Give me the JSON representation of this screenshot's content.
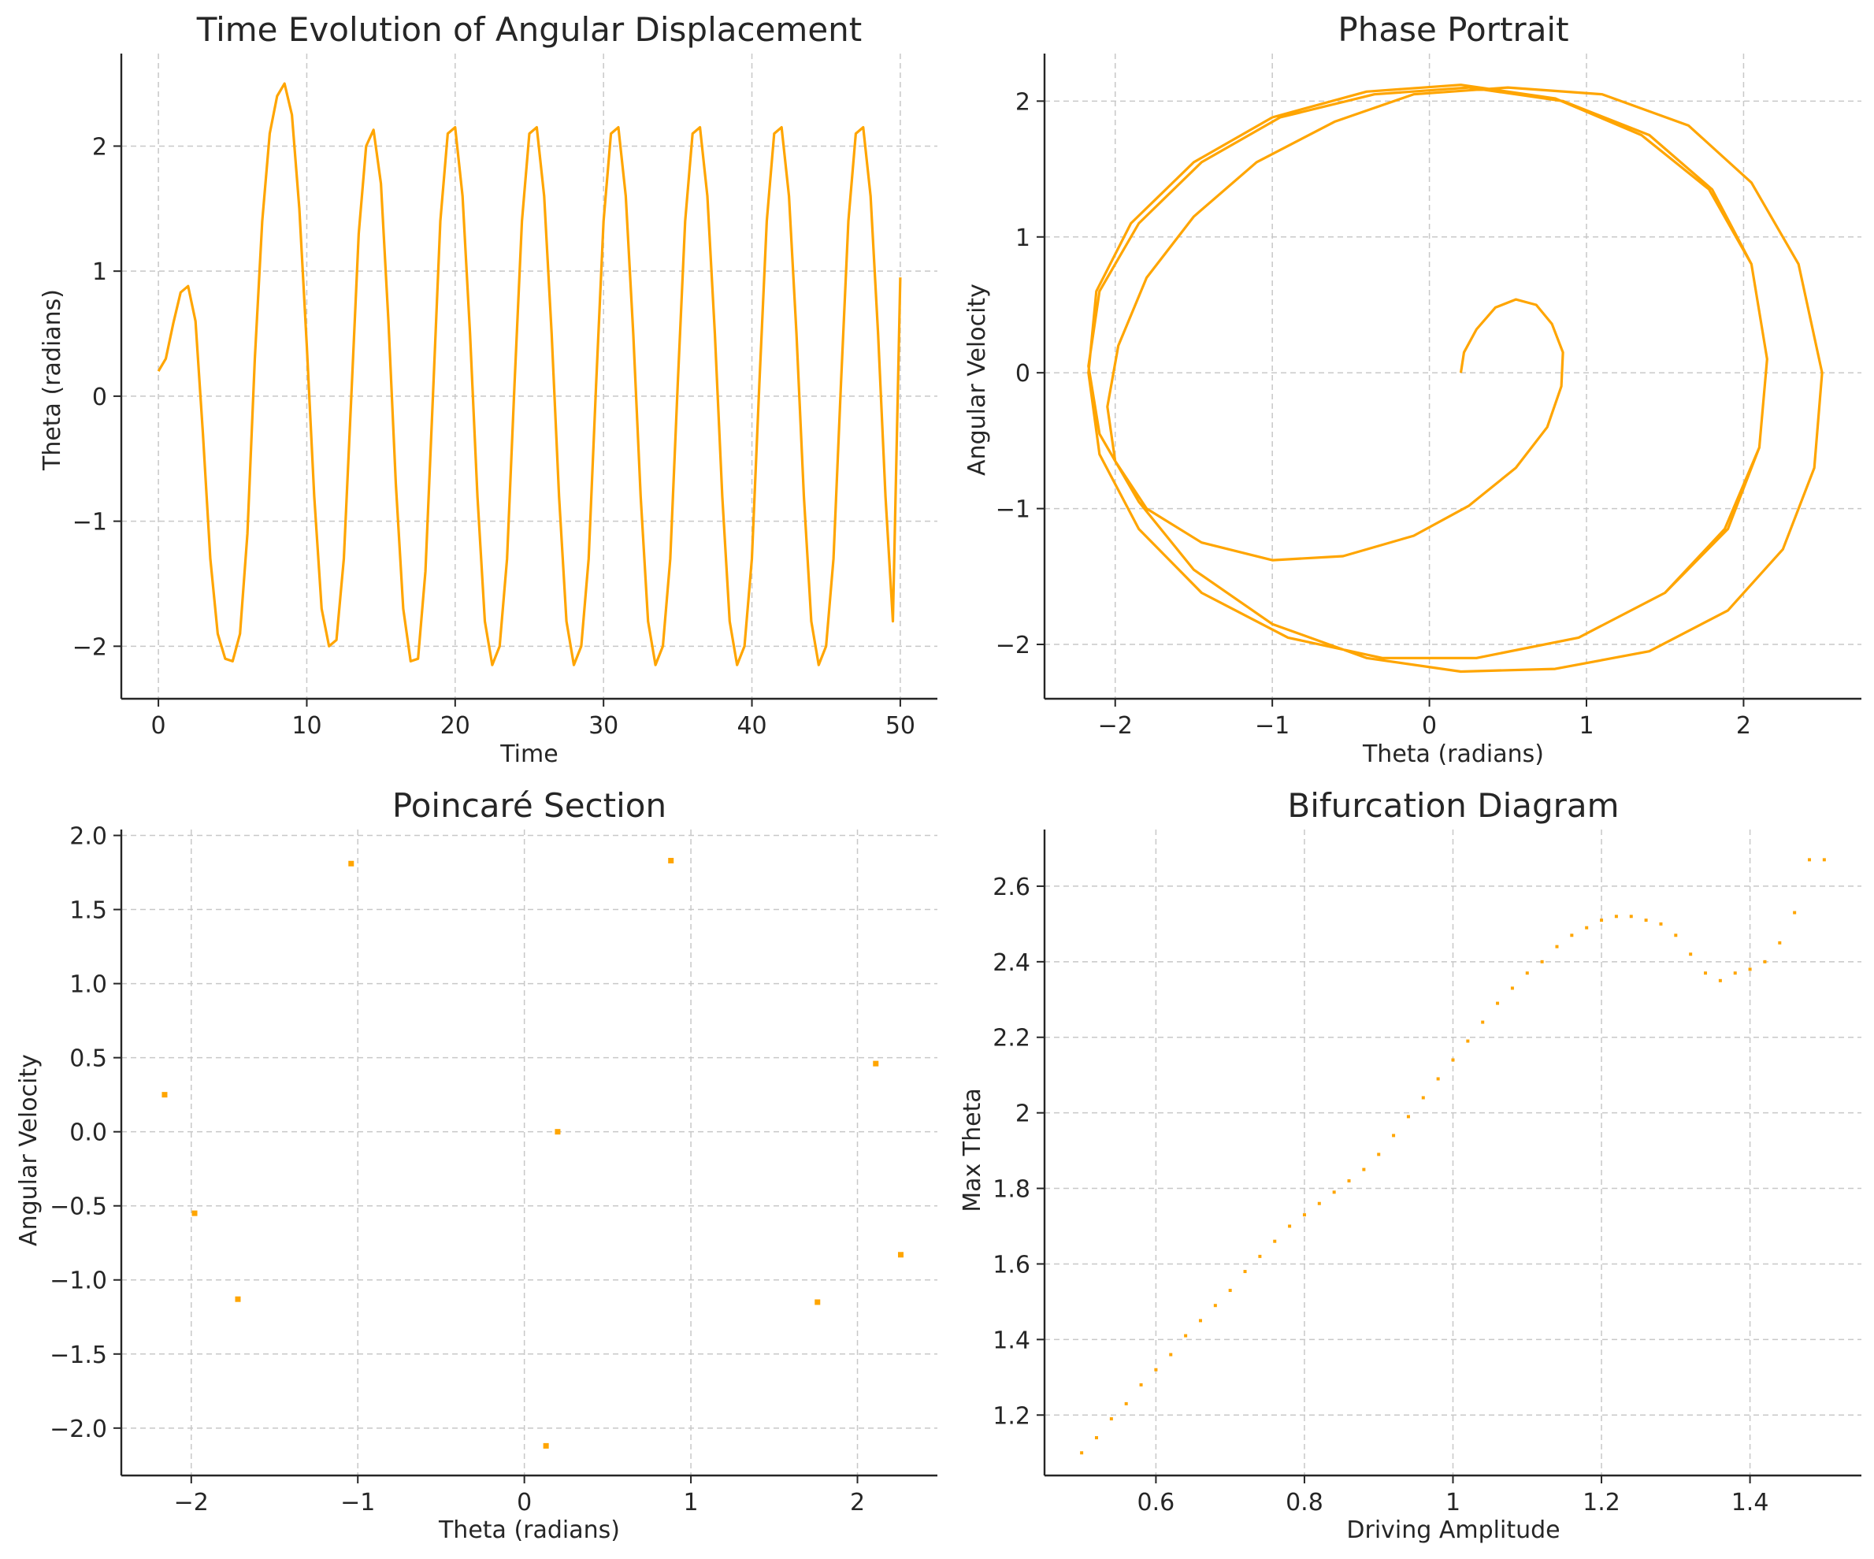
{
  "accent_color": "#ffa500",
  "chart_data": [
    {
      "type": "line",
      "title": "Time Evolution of Angular Displacement",
      "xlabel": "Time",
      "ylabel": "Theta (radians)",
      "xlim": [
        -2.5,
        52.5
      ],
      "ylim": [
        -2.42,
        2.74
      ],
      "xticks": [
        0,
        10,
        20,
        30,
        40,
        50
      ],
      "yticks": [
        -2,
        -1,
        0,
        1,
        2
      ],
      "grid": true,
      "color": "#ffa500",
      "series": [
        {
          "x": [
            0,
            0.5,
            1.0,
            1.5,
            2.0,
            2.5,
            3.0,
            3.5,
            4.0,
            4.5,
            5.0,
            5.5,
            6.0,
            6.5,
            7.0,
            7.5,
            8.0,
            8.5,
            9.0,
            9.5,
            10.0,
            10.5,
            11.0,
            11.5,
            12.0,
            12.5,
            13.0,
            13.5,
            14.0,
            14.5,
            15.0,
            15.5,
            16.0,
            16.5,
            17.0,
            17.5,
            18.0,
            18.5,
            19.0,
            19.5,
            20.0,
            20.5,
            21.0,
            21.5,
            22.0,
            22.5,
            23.0,
            23.5,
            24.0,
            24.5,
            25.0,
            25.5,
            26.0,
            26.5,
            27.0,
            27.5,
            28.0,
            28.5,
            29.0,
            29.5,
            30.0,
            30.5,
            31.0,
            31.5,
            32.0,
            32.5,
            33.0,
            33.5,
            34.0,
            34.5,
            35.0,
            35.5,
            36.0,
            36.5,
            37.0,
            37.5,
            38.0,
            38.5,
            39.0,
            39.5,
            40.0,
            40.5,
            41.0,
            41.5,
            42.0,
            42.5,
            43.0,
            43.5,
            44.0,
            44.5,
            45.0,
            45.5,
            46.0,
            46.5,
            47.0,
            47.5,
            48.0,
            48.5,
            49.0,
            49.5,
            50.0
          ],
          "y": [
            0.2,
            0.3,
            0.58,
            0.83,
            0.88,
            0.6,
            -0.3,
            -1.3,
            -1.9,
            -2.1,
            -2.12,
            -1.9,
            -1.1,
            0.3,
            1.4,
            2.1,
            2.4,
            2.5,
            2.25,
            1.5,
            0.4,
            -0.8,
            -1.7,
            -2.0,
            -1.95,
            -1.3,
            0.0,
            1.3,
            2.0,
            2.13,
            1.7,
            0.6,
            -0.7,
            -1.7,
            -2.12,
            -2.1,
            -1.4,
            0.0,
            1.4,
            2.1,
            2.15,
            1.6,
            0.5,
            -0.8,
            -1.8,
            -2.15,
            -2.0,
            -1.3,
            0.1,
            1.4,
            2.1,
            2.15,
            1.6,
            0.5,
            -0.8,
            -1.8,
            -2.15,
            -2.0,
            -1.3,
            0.1,
            1.4,
            2.1,
            2.15,
            1.6,
            0.5,
            -0.8,
            -1.8,
            -2.15,
            -2.0,
            -1.3,
            0.1,
            1.4,
            2.1,
            2.15,
            1.6,
            0.5,
            -0.8,
            -1.8,
            -2.15,
            -2.0,
            -1.3,
            0.1,
            1.4,
            2.1,
            2.15,
            1.6,
            0.5,
            -0.8,
            -1.8,
            -2.15,
            -2.0,
            -1.3,
            0.1,
            1.4,
            2.1,
            2.15,
            1.6,
            0.5,
            -0.8,
            -1.8,
            0.95
          ]
        }
      ]
    },
    {
      "type": "line",
      "title": "Phase Portrait",
      "xlabel": "Theta (radians)",
      "ylabel": "Angular Velocity",
      "xlim": [
        -2.45,
        2.75
      ],
      "ylim": [
        -2.4,
        2.35
      ],
      "xticks": [
        -2,
        -1,
        0,
        1,
        2
      ],
      "yticks": [
        -2,
        -1,
        0,
        1,
        2
      ],
      "grid": true,
      "color": "#ffa500",
      "series": [
        {
          "x": [
            0.2,
            0.22,
            0.3,
            0.42,
            0.55,
            0.68,
            0.78,
            0.85,
            0.84,
            0.75,
            0.55,
            0.25,
            -0.1,
            -0.55,
            -1.0,
            -1.45,
            -1.8,
            -2.0,
            -2.05,
            -1.98,
            -1.8,
            -1.5,
            -1.1,
            -0.6,
            -0.1,
            0.5,
            1.1,
            1.65,
            2.05,
            2.35,
            2.5,
            2.45,
            2.25,
            1.9,
            1.4,
            0.8,
            0.2,
            -0.4,
            -1.0,
            -1.5,
            -1.85,
            -2.1,
            -2.17,
            -2.1,
            -1.85,
            -1.45,
            -0.95,
            -0.35,
            0.25,
            0.85,
            1.4,
            1.8,
            2.05,
            2.15,
            2.1,
            1.9,
            1.5,
            0.95,
            0.3,
            -0.3,
            -0.9,
            -1.45,
            -1.85,
            -2.1,
            -2.17,
            -2.12,
            -1.9,
            -1.5,
            -1.0,
            -0.4,
            0.2,
            0.8,
            1.35,
            1.78,
            2.05,
            2.15,
            2.1,
            1.88,
            1.5,
            0.95,
            0.3,
            -0.3,
            -0.9,
            -1.45,
            -1.85,
            -2.1,
            -2.17
          ],
          "y": [
            0.0,
            0.15,
            0.32,
            0.48,
            0.54,
            0.5,
            0.36,
            0.15,
            -0.1,
            -0.4,
            -0.7,
            -0.98,
            -1.2,
            -1.35,
            -1.38,
            -1.25,
            -1.0,
            -0.65,
            -0.25,
            0.2,
            0.7,
            1.15,
            1.55,
            1.85,
            2.05,
            2.1,
            2.05,
            1.82,
            1.4,
            0.8,
            0.0,
            -0.7,
            -1.3,
            -1.75,
            -2.05,
            -2.18,
            -2.2,
            -2.1,
            -1.85,
            -1.45,
            -0.95,
            -0.45,
            0.05,
            0.6,
            1.1,
            1.55,
            1.88,
            2.05,
            2.1,
            2.0,
            1.75,
            1.35,
            0.8,
            0.1,
            -0.55,
            -1.15,
            -1.62,
            -1.95,
            -2.1,
            -2.1,
            -1.95,
            -1.62,
            -1.15,
            -0.6,
            0.0,
            0.6,
            1.1,
            1.55,
            1.88,
            2.07,
            2.12,
            2.02,
            1.75,
            1.35,
            0.8,
            0.1,
            -0.55,
            -1.15,
            -1.62,
            -1.95,
            -2.1,
            -2.1,
            -1.95,
            -1.62,
            -1.15,
            -0.6,
            0.0
          ]
        }
      ]
    },
    {
      "type": "scatter",
      "title": "Poincaré Section",
      "xlabel": "Theta (radians)",
      "ylabel": "Angular Velocity",
      "xlim": [
        -2.42,
        2.48
      ],
      "ylim": [
        -2.32,
        2.04
      ],
      "xticks": [
        -2,
        -1,
        0,
        1,
        2
      ],
      "yticks": [
        -2.0,
        -1.5,
        -1.0,
        -0.5,
        0.0,
        0.5,
        1.0,
        1.5,
        2.0
      ],
      "yticklabels": [
        "−2.0",
        "−1.5",
        "−1.0",
        "−0.5",
        "0.0",
        "0.5",
        "1.0",
        "1.5",
        "2.0"
      ],
      "grid": true,
      "color": "#ffa500",
      "x": [
        -2.16,
        -1.98,
        -1.72,
        -1.04,
        0.2,
        0.13,
        0.88,
        1.76,
        2.11,
        2.26
      ],
      "y": [
        0.25,
        -0.55,
        -1.13,
        1.81,
        0.0,
        -2.12,
        1.83,
        -1.15,
        0.46,
        -0.83
      ]
    },
    {
      "type": "scatter",
      "title": "Bifurcation Diagram",
      "xlabel": "Driving Amplitude",
      "ylabel": "Max Theta",
      "xlim": [
        0.45,
        1.55
      ],
      "ylim": [
        1.04,
        2.75
      ],
      "xticks": [
        0.6,
        0.8,
        1.0,
        1.2,
        1.4
      ],
      "yticks": [
        1.2,
        1.4,
        1.6,
        1.8,
        2.0,
        2.2,
        2.4,
        2.6
      ],
      "grid": true,
      "color": "#ffa500",
      "x": [
        0.5,
        0.52,
        0.54,
        0.56,
        0.58,
        0.6,
        0.62,
        0.64,
        0.66,
        0.68,
        0.7,
        0.72,
        0.74,
        0.76,
        0.78,
        0.8,
        0.82,
        0.84,
        0.86,
        0.88,
        0.9,
        0.92,
        0.94,
        0.96,
        0.98,
        1.0,
        1.02,
        1.04,
        1.06,
        1.08,
        1.1,
        1.12,
        1.14,
        1.16,
        1.18,
        1.2,
        1.22,
        1.24,
        1.26,
        1.28,
        1.3,
        1.32,
        1.34,
        1.36,
        1.38,
        1.4,
        1.42,
        1.44,
        1.46,
        1.48,
        1.5
      ],
      "y": [
        1.1,
        1.14,
        1.19,
        1.23,
        1.28,
        1.32,
        1.36,
        1.41,
        1.45,
        1.49,
        1.53,
        1.58,
        1.62,
        1.66,
        1.7,
        1.73,
        1.76,
        1.79,
        1.82,
        1.85,
        1.89,
        1.94,
        1.99,
        2.04,
        2.09,
        2.14,
        2.19,
        2.24,
        2.29,
        2.33,
        2.37,
        2.4,
        2.44,
        2.47,
        2.49,
        2.51,
        2.52,
        2.52,
        2.51,
        2.5,
        2.47,
        2.42,
        2.37,
        2.35,
        2.37,
        2.38,
        2.4,
        2.45,
        2.53,
        2.67,
        2.67
      ]
    }
  ]
}
